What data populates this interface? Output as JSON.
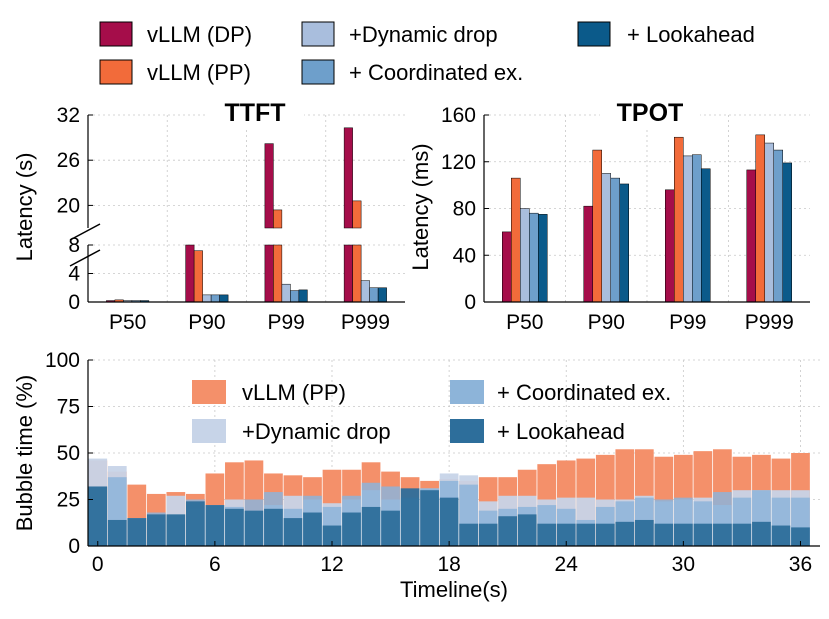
{
  "chart_data": [
    {
      "id": "ttft",
      "type": "bar",
      "title": "TTFT",
      "ylabel": "Latency (s)",
      "xlabel": "",
      "categories": [
        "P50",
        "P90",
        "P99",
        "P999"
      ],
      "y_break": {
        "lower": [
          0,
          8
        ],
        "upper": [
          17,
          32
        ]
      },
      "lower_ticks": [
        "0",
        "4",
        "8"
      ],
      "upper_ticks": [
        "20",
        "26",
        "32"
      ],
      "series": [
        {
          "name": "vLLM (DP)",
          "values": [
            0.2,
            8.0,
            28.2,
            30.3
          ]
        },
        {
          "name": "vLLM (PP)",
          "values": [
            0.3,
            7.2,
            19.4,
            20.6
          ]
        },
        {
          "name": "+Dynamic drop",
          "values": [
            0.2,
            1.0,
            2.5,
            3.0
          ]
        },
        {
          "name": "+ Coordinated ex.",
          "values": [
            0.2,
            1.0,
            1.6,
            2.0
          ]
        },
        {
          "name": "+ Lookahead",
          "values": [
            0.2,
            1.0,
            1.7,
            2.0
          ]
        }
      ]
    },
    {
      "id": "tpot",
      "type": "bar",
      "title": "TPOT",
      "ylabel": "Latency (ms)",
      "xlabel": "",
      "categories": [
        "P50",
        "P90",
        "P99",
        "P999"
      ],
      "ylim": [
        0,
        160
      ],
      "yticks": [
        "0",
        "40",
        "80",
        "120",
        "160"
      ],
      "series": [
        {
          "name": "vLLM (DP)",
          "values": [
            60,
            82,
            96,
            113
          ]
        },
        {
          "name": "vLLM (PP)",
          "values": [
            106,
            130,
            141,
            143
          ]
        },
        {
          "name": "+Dynamic drop",
          "values": [
            80,
            110,
            125,
            136
          ]
        },
        {
          "name": "+ Coordinated ex.",
          "values": [
            76,
            106,
            126,
            130
          ]
        },
        {
          "name": "+ Lookahead",
          "values": [
            75,
            101,
            114,
            119
          ]
        }
      ]
    },
    {
      "id": "bubble",
      "type": "bar",
      "title": "",
      "ylabel": "Bubble time (%)",
      "xlabel": "Timeline(s)",
      "ylim": [
        0,
        100
      ],
      "yticks": [
        "0",
        "25",
        "50",
        "75",
        "100"
      ],
      "xlim": [
        -0.5,
        37
      ],
      "xticks": [
        "0",
        "6",
        "12",
        "18",
        "24",
        "30",
        "36"
      ],
      "x": [
        0,
        1,
        2,
        3,
        4,
        5,
        6,
        7,
        8,
        9,
        10,
        11,
        12,
        13,
        14,
        15,
        16,
        17,
        18,
        19,
        20,
        21,
        22,
        23,
        24,
        25,
        26,
        27,
        28,
        29,
        30,
        31,
        32,
        33,
        34,
        35,
        36
      ],
      "series": [
        {
          "name": "vLLM (PP)",
          "values": [
            46,
            40,
            33,
            28,
            29,
            28,
            39,
            45,
            46,
            39,
            38,
            37,
            41,
            41,
            45,
            40,
            37,
            35,
            36,
            35,
            37,
            37,
            41,
            44,
            46,
            47,
            49,
            52,
            52,
            48,
            49,
            51,
            52,
            48,
            49,
            47,
            50
          ]
        },
        {
          "name": "+Dynamic drop",
          "values": [
            47,
            43,
            2,
            2,
            27,
            20,
            21,
            25,
            19,
            22,
            27,
            25,
            23,
            25,
            30,
            25,
            25,
            31,
            39,
            38,
            24,
            27,
            27,
            25,
            26,
            26,
            25,
            25,
            27,
            24,
            25,
            26,
            22,
            30,
            30,
            30,
            30
          ]
        },
        {
          "name": "+ Coordinated ex.",
          "values": [
            32,
            37,
            15,
            18,
            17,
            25,
            22,
            21,
            25,
            29,
            20,
            27,
            21,
            27,
            34,
            32,
            26,
            31,
            35,
            33,
            19,
            20,
            21,
            22,
            20,
            14,
            21,
            24,
            26,
            25,
            26,
            24,
            29,
            26,
            30,
            26,
            26
          ]
        },
        {
          "name": "+ Lookahead",
          "values": [
            32,
            14,
            15,
            17,
            17,
            24,
            22,
            20,
            19,
            20,
            15,
            18,
            11,
            18,
            21,
            19,
            31,
            30,
            26,
            12,
            12,
            16,
            17,
            12,
            12,
            12,
            12,
            13,
            14,
            12,
            12,
            12,
            12,
            12,
            13,
            11,
            10
          ]
        }
      ]
    }
  ],
  "legend_top": [
    "vLLM (DP)",
    "vLLM (PP)",
    "+Dynamic drop",
    "+ Coordinated ex.",
    "+ Lookahead"
  ],
  "legend_bottom": [
    "vLLM (PP)",
    "+Dynamic drop",
    "+ Coordinated ex.",
    "+ Lookahead"
  ],
  "colors": {
    "vLLM (DP)": "#A50D4A",
    "vLLM (PP)": "#F26B3A",
    "+Dynamic drop": "#A9BEDD",
    "+ Coordinated ex.": "#6E9FCB",
    "+ Lookahead": "#0B5A8A",
    "bubble_pp": "#F4906A",
    "bubble_drop": "#C7D4E8",
    "bubble_coord": "#8DB4D9",
    "bubble_look": "#2D6E9B"
  }
}
